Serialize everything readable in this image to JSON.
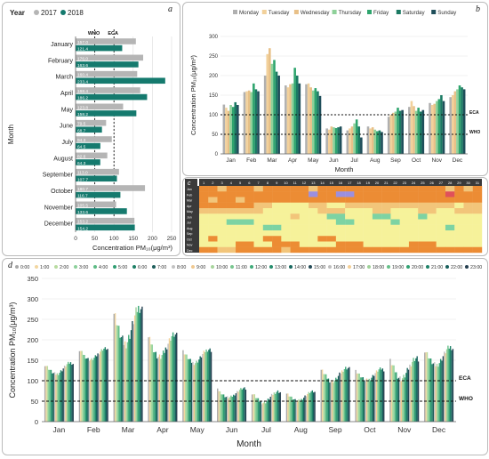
{
  "panel_labels": {
    "a": "a",
    "b": "b",
    "c": "c",
    "d": "d"
  },
  "colors": {
    "y2017": "#b5b5b5",
    "y2018": "#157a6e",
    "heat_low": "#f6f29a",
    "heat_mid": "#f2c57a",
    "heat_high": "#ec8c34",
    "heat_vlow": "#7dd3a3",
    "heat_purple": "#9b8fe0",
    "heat_red": "#e0505a"
  },
  "chart_data": [
    {
      "id": "a",
      "type": "bar",
      "orientation": "horizontal",
      "legend_title": "Year",
      "series_names": [
        "2017",
        "2018"
      ],
      "categories": [
        "January",
        "February",
        "March",
        "April",
        "May",
        "June",
        "July",
        "August",
        "September",
        "October",
        "November",
        "December"
      ],
      "values_2017": [
        157.0,
        176.0,
        160.4,
        168.4,
        123.8,
        79.5,
        94.3,
        82.6,
        113.0,
        180.7,
        105.5,
        153.2
      ],
      "values_2018": [
        121.4,
        163.6,
        233.4,
        186.2,
        158.2,
        68.7,
        64.5,
        64.3,
        107.7,
        116.7,
        133.6,
        154.2
      ],
      "value_labels_2017": [
        "157.0",
        "176.0",
        "160.4",
        "168.4",
        "123.8",
        "79.5",
        "94.3",
        "82.6",
        "113.0",
        "180.7",
        "105.5",
        "153.2"
      ],
      "value_labels_2018": [
        "121.4",
        "163.6",
        "233.4",
        "186.2",
        "158.2",
        "68.7",
        "64.5",
        "64.3",
        "107.7",
        "116.7",
        "133.6",
        "154.2"
      ],
      "xticks": [
        "0",
        "50",
        "100",
        "150",
        "200",
        "250"
      ],
      "xlim": [
        0,
        250
      ],
      "xlabel": "Concentration PM₁₀(μg/m³)",
      "ylabel": "Month",
      "reference_lines": [
        {
          "name": "WHO",
          "value": 50
        },
        {
          "name": "ECA",
          "value": 100
        }
      ]
    },
    {
      "id": "b",
      "type": "bar",
      "series": [
        {
          "name": "Monday",
          "color": "#b0b0b0",
          "values": [
            126,
            158,
            200,
            175,
            178,
            65,
            60,
            70,
            95,
            120,
            130,
            145
          ]
        },
        {
          "name": "Tuesday",
          "color": "#f2d19b",
          "values": [
            118,
            160,
            255,
            170,
            180,
            62,
            65,
            65,
            100,
            135,
            125,
            150
          ]
        },
        {
          "name": "Wednesday",
          "color": "#e8c088",
          "values": [
            110,
            162,
            270,
            178,
            170,
            70,
            70,
            68,
            105,
            122,
            128,
            160
          ]
        },
        {
          "name": "Thursday",
          "color": "#8fd19a",
          "values": [
            125,
            158,
            230,
            180,
            162,
            68,
            78,
            62,
            108,
            110,
            135,
            165
          ]
        },
        {
          "name": "Friday",
          "color": "#2fa56e",
          "values": [
            120,
            180,
            240,
            220,
            168,
            66,
            88,
            58,
            118,
            118,
            140,
            175
          ]
        },
        {
          "name": "Saturday",
          "color": "#1b7a63",
          "values": [
            132,
            165,
            210,
            200,
            160,
            68,
            70,
            60,
            110,
            108,
            150,
            170
          ]
        },
        {
          "name": "Sunday",
          "color": "#1f4e5a",
          "values": [
            125,
            160,
            200,
            180,
            148,
            70,
            42,
            56,
            112,
            112,
            135,
            165
          ]
        }
      ],
      "categories": [
        "Jan",
        "Feb",
        "Mar",
        "Apr",
        "May",
        "Jun",
        "Jul",
        "Aug",
        "Sep",
        "Oct",
        "Nov",
        "Dec"
      ],
      "yticks": [
        "0",
        "50",
        "100",
        "150",
        "200",
        "250",
        "300"
      ],
      "ylim": [
        0,
        300
      ],
      "xlabel": "Month",
      "ylabel": "Concentration PM₁₀(μg/m³)",
      "reference_lines": [
        {
          "name": "ECA",
          "value": 100
        },
        {
          "name": "WHO",
          "value": 50
        }
      ]
    },
    {
      "id": "c",
      "type": "heatmap",
      "col_labels": [
        "1",
        "2",
        "3",
        "4",
        "5",
        "6",
        "7",
        "8",
        "9",
        "10",
        "11",
        "12",
        "13",
        "14",
        "15",
        "16",
        "17",
        "18",
        "19",
        "20",
        "21",
        "22",
        "23",
        "24",
        "25",
        "26",
        "27",
        "28",
        "29",
        "30",
        "31"
      ],
      "row_labels": [
        "Jan",
        "Feb",
        "Mar",
        "Apr",
        "May",
        "Jun",
        "Jul",
        "Aug",
        "Sep",
        "Oct",
        "Nov",
        "Dec"
      ],
      "levels": [
        [
          3,
          3,
          2,
          3,
          3,
          3,
          2,
          3,
          3,
          3,
          3,
          3,
          2,
          3,
          3,
          3,
          3,
          3,
          3,
          3,
          3,
          3,
          3,
          3,
          3,
          3,
          3,
          2,
          3,
          2,
          3
        ],
        [
          3,
          3,
          3,
          3,
          3,
          3,
          3,
          3,
          3,
          3,
          3,
          3,
          4,
          3,
          3,
          4,
          4,
          3,
          3,
          3,
          3,
          3,
          3,
          3,
          3,
          3,
          3,
          5,
          3,
          3,
          3
        ],
        [
          3,
          2,
          3,
          3,
          2,
          3,
          3,
          3,
          3,
          3,
          3,
          3,
          3,
          3,
          3,
          3,
          3,
          3,
          3,
          3,
          3,
          3,
          3,
          3,
          3,
          3,
          3,
          3,
          3,
          3,
          3
        ],
        [
          3,
          3,
          3,
          3,
          3,
          3,
          2,
          2,
          1,
          1,
          1,
          1,
          2,
          2,
          1,
          1,
          2,
          2,
          2,
          2,
          2,
          2,
          2,
          2,
          2,
          2,
          2,
          2,
          1,
          2,
          2
        ],
        [
          2,
          2,
          2,
          2,
          2,
          2,
          2,
          1,
          1,
          1,
          1,
          1,
          1,
          2,
          2,
          2,
          1,
          1,
          1,
          2,
          2,
          1,
          1,
          1,
          2,
          2,
          1,
          1,
          2,
          2,
          2
        ],
        [
          1,
          1,
          1,
          1,
          1,
          1,
          1,
          1,
          1,
          1,
          2,
          1,
          1,
          1,
          0,
          0,
          1,
          1,
          1,
          0,
          0,
          1,
          1,
          1,
          0,
          1,
          1,
          1,
          1,
          1,
          1
        ],
        [
          1,
          1,
          1,
          0,
          0,
          0,
          1,
          1,
          1,
          1,
          1,
          1,
          1,
          1,
          1,
          0,
          0,
          1,
          1,
          1,
          1,
          0,
          1,
          1,
          1,
          1,
          1,
          1,
          1,
          1,
          1
        ],
        [
          1,
          1,
          1,
          1,
          1,
          1,
          1,
          0,
          0,
          1,
          1,
          1,
          1,
          1,
          1,
          1,
          1,
          1,
          1,
          1,
          1,
          1,
          1,
          1,
          1,
          1,
          1,
          0,
          1,
          1,
          1
        ],
        [
          1,
          1,
          1,
          1,
          1,
          1,
          1,
          1,
          1,
          1,
          1,
          1,
          1,
          1,
          1,
          1,
          1,
          1,
          1,
          1,
          1,
          1,
          1,
          1,
          1,
          1,
          1,
          1,
          1,
          1,
          1
        ],
        [
          1,
          3,
          1,
          1,
          1,
          1,
          1,
          3,
          3,
          1,
          1,
          1,
          1,
          3,
          3,
          1,
          1,
          1,
          1,
          1,
          1,
          1,
          1,
          1,
          1,
          1,
          1,
          1,
          1,
          1,
          1
        ],
        [
          1,
          1,
          1,
          1,
          3,
          3,
          1,
          1,
          3,
          3,
          3,
          1,
          1,
          1,
          1,
          3,
          3,
          3,
          1,
          1,
          1,
          1,
          1,
          3,
          3,
          3,
          1,
          1,
          1,
          1,
          1
        ],
        [
          3,
          3,
          2,
          2,
          3,
          3,
          3,
          3,
          3,
          2,
          3,
          3,
          3,
          3,
          3,
          3,
          3,
          3,
          3,
          3,
          3,
          3,
          3,
          3,
          3,
          3,
          3,
          3,
          3,
          3,
          3
        ]
      ]
    },
    {
      "id": "d",
      "type": "bar",
      "hours": [
        "0:00",
        "1:00",
        "2:00",
        "3:00",
        "4:00",
        "5:00",
        "6:00",
        "7:00",
        "8:00",
        "9:00",
        "10:00",
        "11:00",
        "12:00",
        "13:00",
        "14:00",
        "15:00",
        "16:00",
        "17:00",
        "18:00",
        "19:00",
        "20:00",
        "21:00",
        "22:00",
        "23:00"
      ],
      "categories": [
        "Jan",
        "Feb",
        "Mar",
        "Apr",
        "May",
        "Jun",
        "Jul",
        "Aug",
        "Sep",
        "Oct",
        "Nov",
        "Dec"
      ],
      "monthly_level": [
        130,
        165,
        235,
        185,
        160,
        70,
        60,
        62,
        115,
        115,
        130,
        160
      ],
      "monthly_amplitude": [
        25,
        25,
        80,
        50,
        30,
        20,
        25,
        20,
        30,
        25,
        45,
        40
      ],
      "yticks": [
        "0",
        "50",
        "100",
        "150",
        "200",
        "250",
        "300",
        "350"
      ],
      "ylim": [
        0,
        350
      ],
      "xlabel": "Month",
      "ylabel": "Concentration PM₁₀(μg/m³)",
      "reference_lines": [
        {
          "name": "ECA",
          "value": 100
        },
        {
          "name": "WHO",
          "value": 50
        }
      ]
    }
  ]
}
